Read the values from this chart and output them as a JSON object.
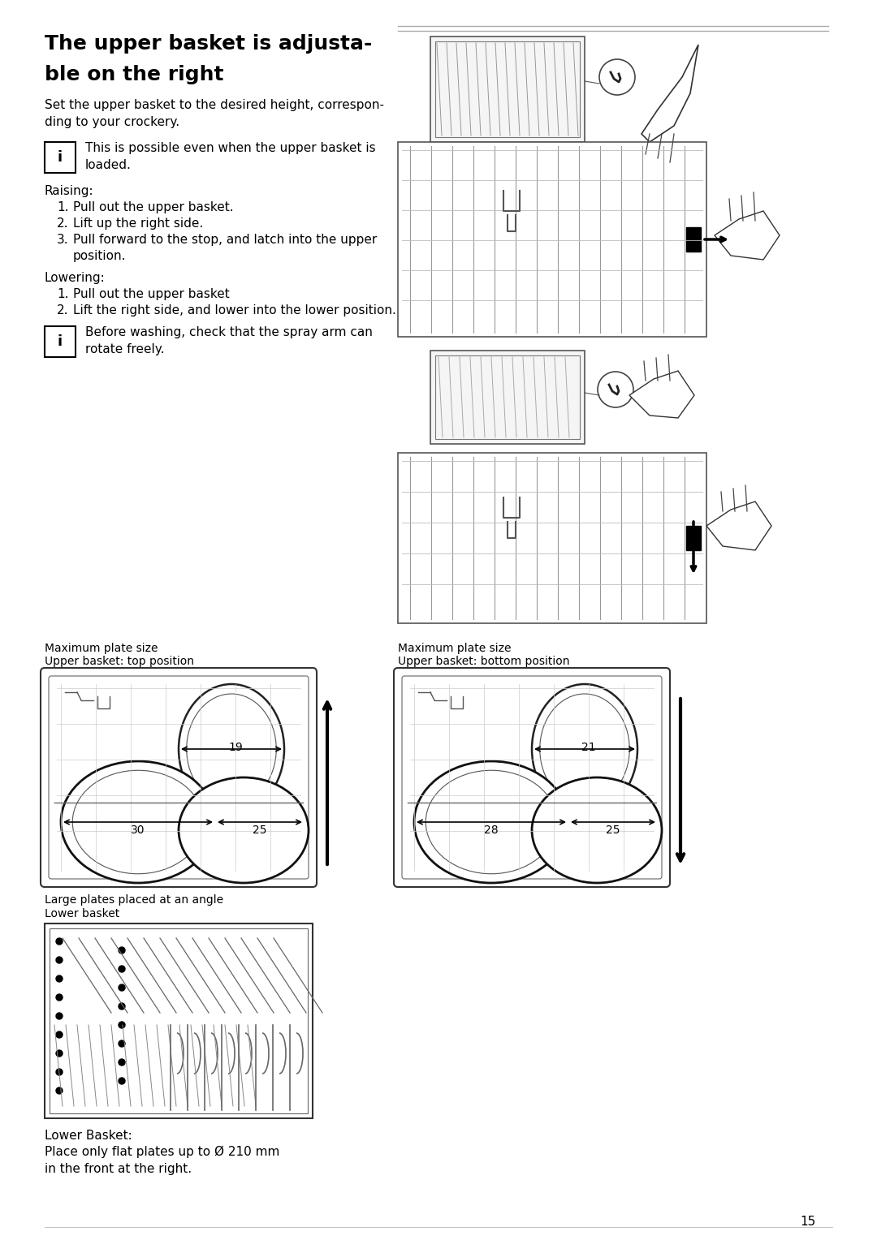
{
  "title_line1": "The upper basket is adjusta-",
  "title_line2": "ble on the right",
  "page_number": "15",
  "bg_color": "#ffffff",
  "body_text_1": "Set the upper basket to the desired height, correspon-\nding to your crockery.",
  "info_text_1": "This is possible even when the upper basket is\nloaded.",
  "raising_title": "Raising:",
  "raising_steps": [
    "Pull out the upper basket.",
    "Lift up the right side.",
    "Pull forward to the stop, and latch into the upper\nposition."
  ],
  "lowering_title": "Lowering:",
  "lowering_steps": [
    "Pull out the upper basket",
    "Lift the right side, and lower into the lower position."
  ],
  "info_text_2": "Before washing, check that the spray arm can\nrotate freely.",
  "label_top_left_1": "Maximum plate size",
  "label_top_left_2": "Upper basket: top position",
  "label_top_right_1": "Maximum plate size",
  "label_top_right_2": "Upper basket: bottom position",
  "meas_top_left": [
    "19",
    "30",
    "25"
  ],
  "meas_top_right": [
    "21",
    "28",
    "25"
  ],
  "lower_basket_label_1": "Large plates placed at an angle",
  "lower_basket_label_2": "Lower basket",
  "lower_basket_text": "Lower Basket:",
  "lower_basket_body": "Place only flat plates up to Ø 210 mm\nin the front at the right."
}
